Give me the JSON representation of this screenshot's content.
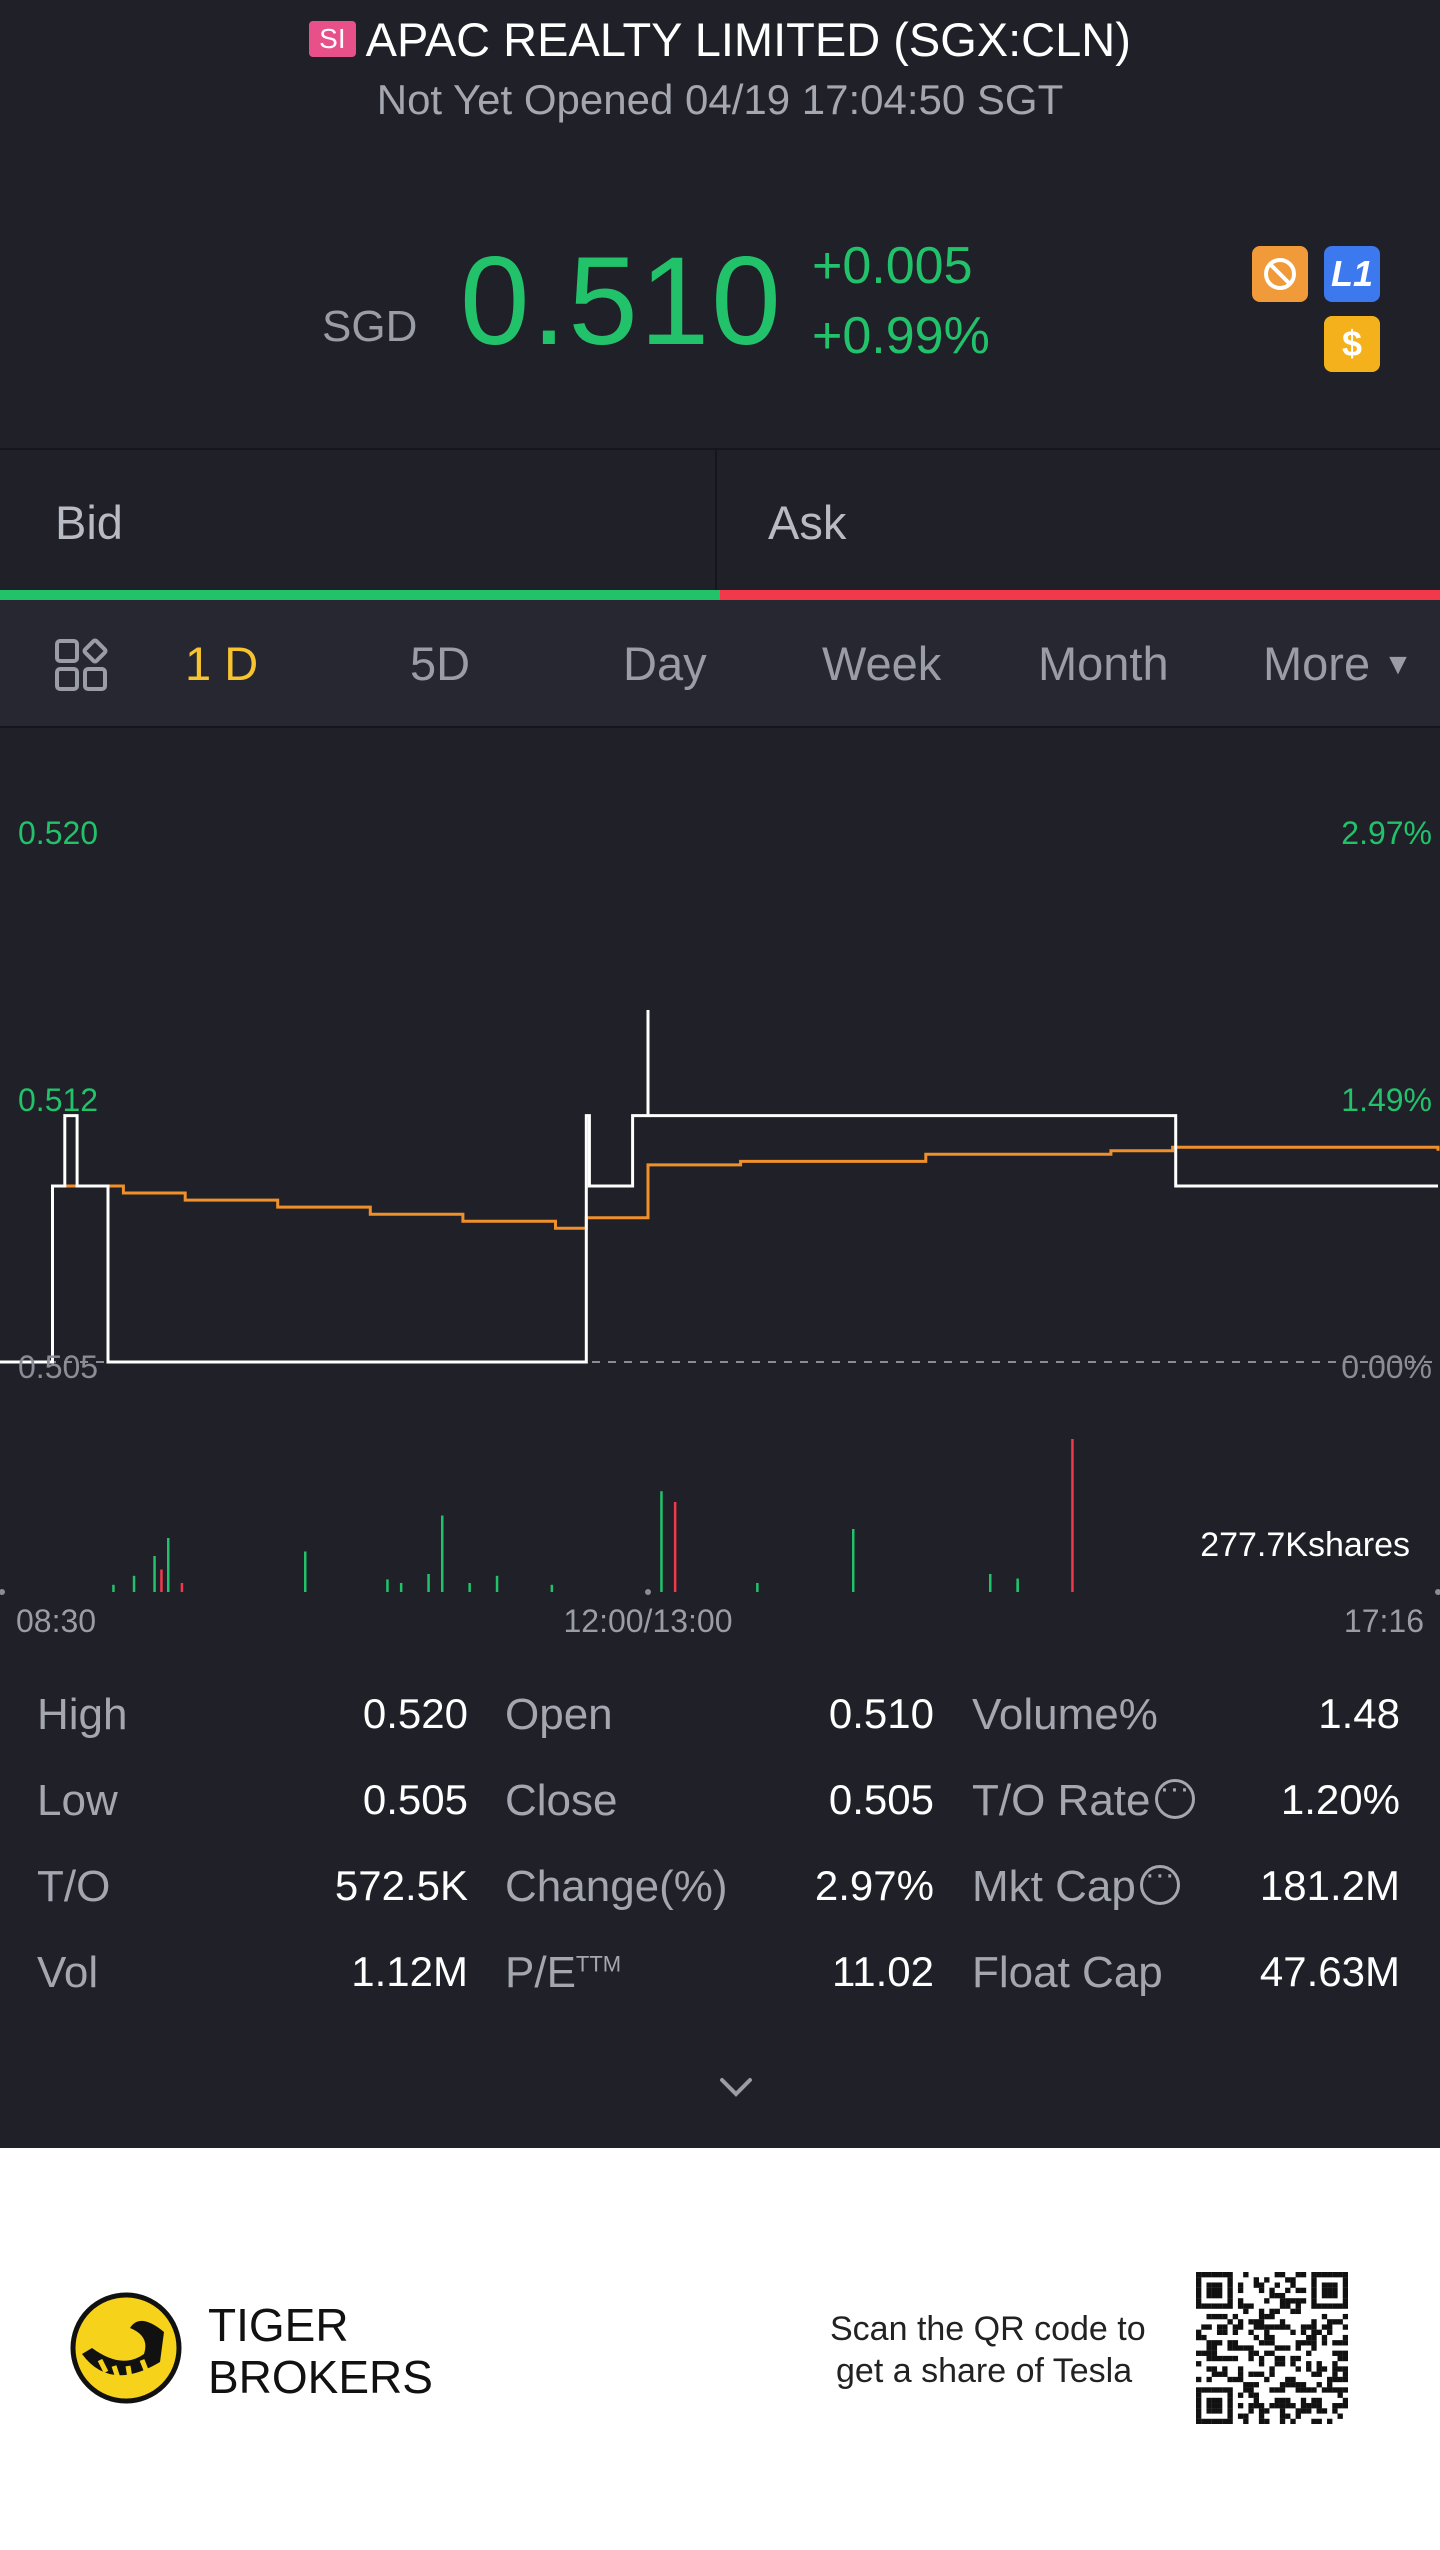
{
  "header": {
    "market_badge": "SI",
    "title": "APAC REALTY LIMITED (SGX:CLN)",
    "status": "Not Yet Opened 04/19 17:04:50 SGT"
  },
  "quote": {
    "currency": "SGD",
    "price": "0.510",
    "change": "+0.005",
    "change_pct": "+0.99%",
    "badges": {
      "l1": "L1",
      "usd": "$"
    }
  },
  "bidask": {
    "bid": "Bid",
    "ask": "Ask"
  },
  "tabs": {
    "items": [
      "1 D",
      "5D",
      "Day",
      "Week",
      "Month",
      "More"
    ],
    "active": "1 D"
  },
  "chart_data": {
    "type": "line",
    "series": [
      {
        "name": "Price",
        "color": "#ffffff",
        "x": [
          "08:30",
          "08:42",
          "08:47",
          "08:51",
          "08:55",
          "09:05",
          "09:15",
          "10:00",
          "11:00",
          "11:30",
          "11:40",
          "11:40",
          "11:41",
          "11:55",
          "12:05",
          "12:20",
          "12:22",
          "12:24",
          "12:26",
          "14:00",
          "15:50",
          "15:51",
          "17:16"
        ],
        "values": [
          0.505,
          0.505,
          0.51,
          0.512,
          0.51,
          0.505,
          0.505,
          0.505,
          0.505,
          0.505,
          0.512,
          0.512,
          0.51,
          0.512,
          0.512,
          0.512,
          0.515,
          0.515,
          0.512,
          0.512,
          0.512,
          0.51,
          0.51
        ]
      },
      {
        "name": "Avg",
        "color": "#f0902a",
        "x": [
          "08:30",
          "08:42",
          "08:47",
          "08:55",
          "09:10",
          "09:30",
          "10:00",
          "10:30",
          "11:00",
          "11:30",
          "11:40",
          "12:00",
          "12:05",
          "12:08",
          "12:30",
          "13:30",
          "14:30",
          "15:30",
          "15:50",
          "17:16"
        ],
        "values": [
          0.505,
          0.505,
          0.51,
          0.51,
          0.5098,
          0.5096,
          0.5094,
          0.5092,
          0.509,
          0.5088,
          0.5091,
          0.5092,
          0.5093,
          0.5104,
          0.5106,
          0.5107,
          0.5109,
          0.511,
          0.5111,
          0.511
        ]
      }
    ],
    "y_labels_left": [
      "0.520",
      "0.512",
      "0.505"
    ],
    "y_labels_right": [
      "2.97%",
      "1.49%",
      "0.00%"
    ],
    "ylim": [
      0.505,
      0.52
    ],
    "x_labels": [
      "08:30",
      "12:00/13:00",
      "17:16"
    ],
    "volume_label": "277.7Kshares",
    "volume": {
      "green": [
        [
          0.06,
          8
        ],
        [
          0.075,
          18
        ],
        [
          0.09,
          40
        ],
        [
          0.1,
          60
        ],
        [
          0.2,
          45
        ],
        [
          0.26,
          14
        ],
        [
          0.27,
          10
        ],
        [
          0.29,
          20
        ],
        [
          0.3,
          85
        ],
        [
          0.32,
          10
        ],
        [
          0.34,
          18
        ],
        [
          0.38,
          8
        ],
        [
          0.46,
          112
        ],
        [
          0.53,
          10
        ],
        [
          0.6,
          25
        ],
        [
          0.6,
          70
        ],
        [
          0.7,
          20
        ],
        [
          0.72,
          10
        ],
        [
          0.72,
          15
        ]
      ],
      "red": [
        [
          0.095,
          25
        ],
        [
          0.11,
          10
        ],
        [
          0.47,
          100
        ],
        [
          0.76,
          170
        ]
      ]
    }
  },
  "stats": {
    "high_label": "High",
    "high": "0.520",
    "low_label": "Low",
    "low": "0.505",
    "to_label": "T/O",
    "to": "572.5K",
    "vol_label": "Vol",
    "vol": "1.12M",
    "open_label": "Open",
    "open": "0.510",
    "close_label": "Close",
    "close": "0.505",
    "chg_label": "Change(%)",
    "chg": "2.97%",
    "pe_label": "P/E",
    "pe_sup": "TTM",
    "pe": "11.02",
    "volpct_label": "Volume%",
    "volpct": "1.48",
    "torate_label": "T/O Rate",
    "torate": "1.20%",
    "mktcap_label": "Mkt Cap",
    "mktcap": "181.2M",
    "floatcap_label": "Float Cap",
    "floatcap": "47.63M"
  },
  "footer": {
    "brand_line1": "TIGER",
    "brand_line2": "BROKERS",
    "scan_line1": "Scan the QR code to",
    "scan_line2": "get a share of Tesla"
  }
}
